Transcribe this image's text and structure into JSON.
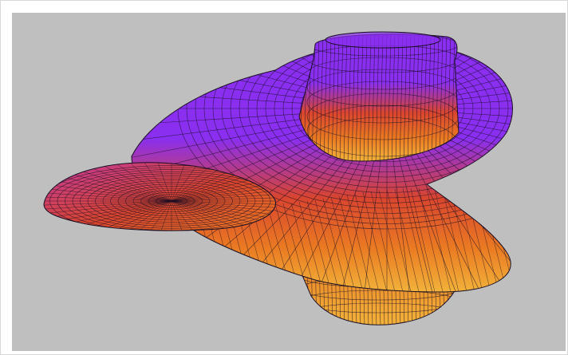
{
  "figure": {
    "description_free": true,
    "colors": {
      "background": "#bfbfbf",
      "frame_border": "#d8d8d8",
      "mesh_line": "#1a0f24",
      "surface_top": "#8a2ff0",
      "surface_mid": "#c23a9c",
      "surface_red": "#d9452e",
      "surface_orange": "#ea7a22",
      "surface_bottom": "#f2b23a"
    }
  }
}
